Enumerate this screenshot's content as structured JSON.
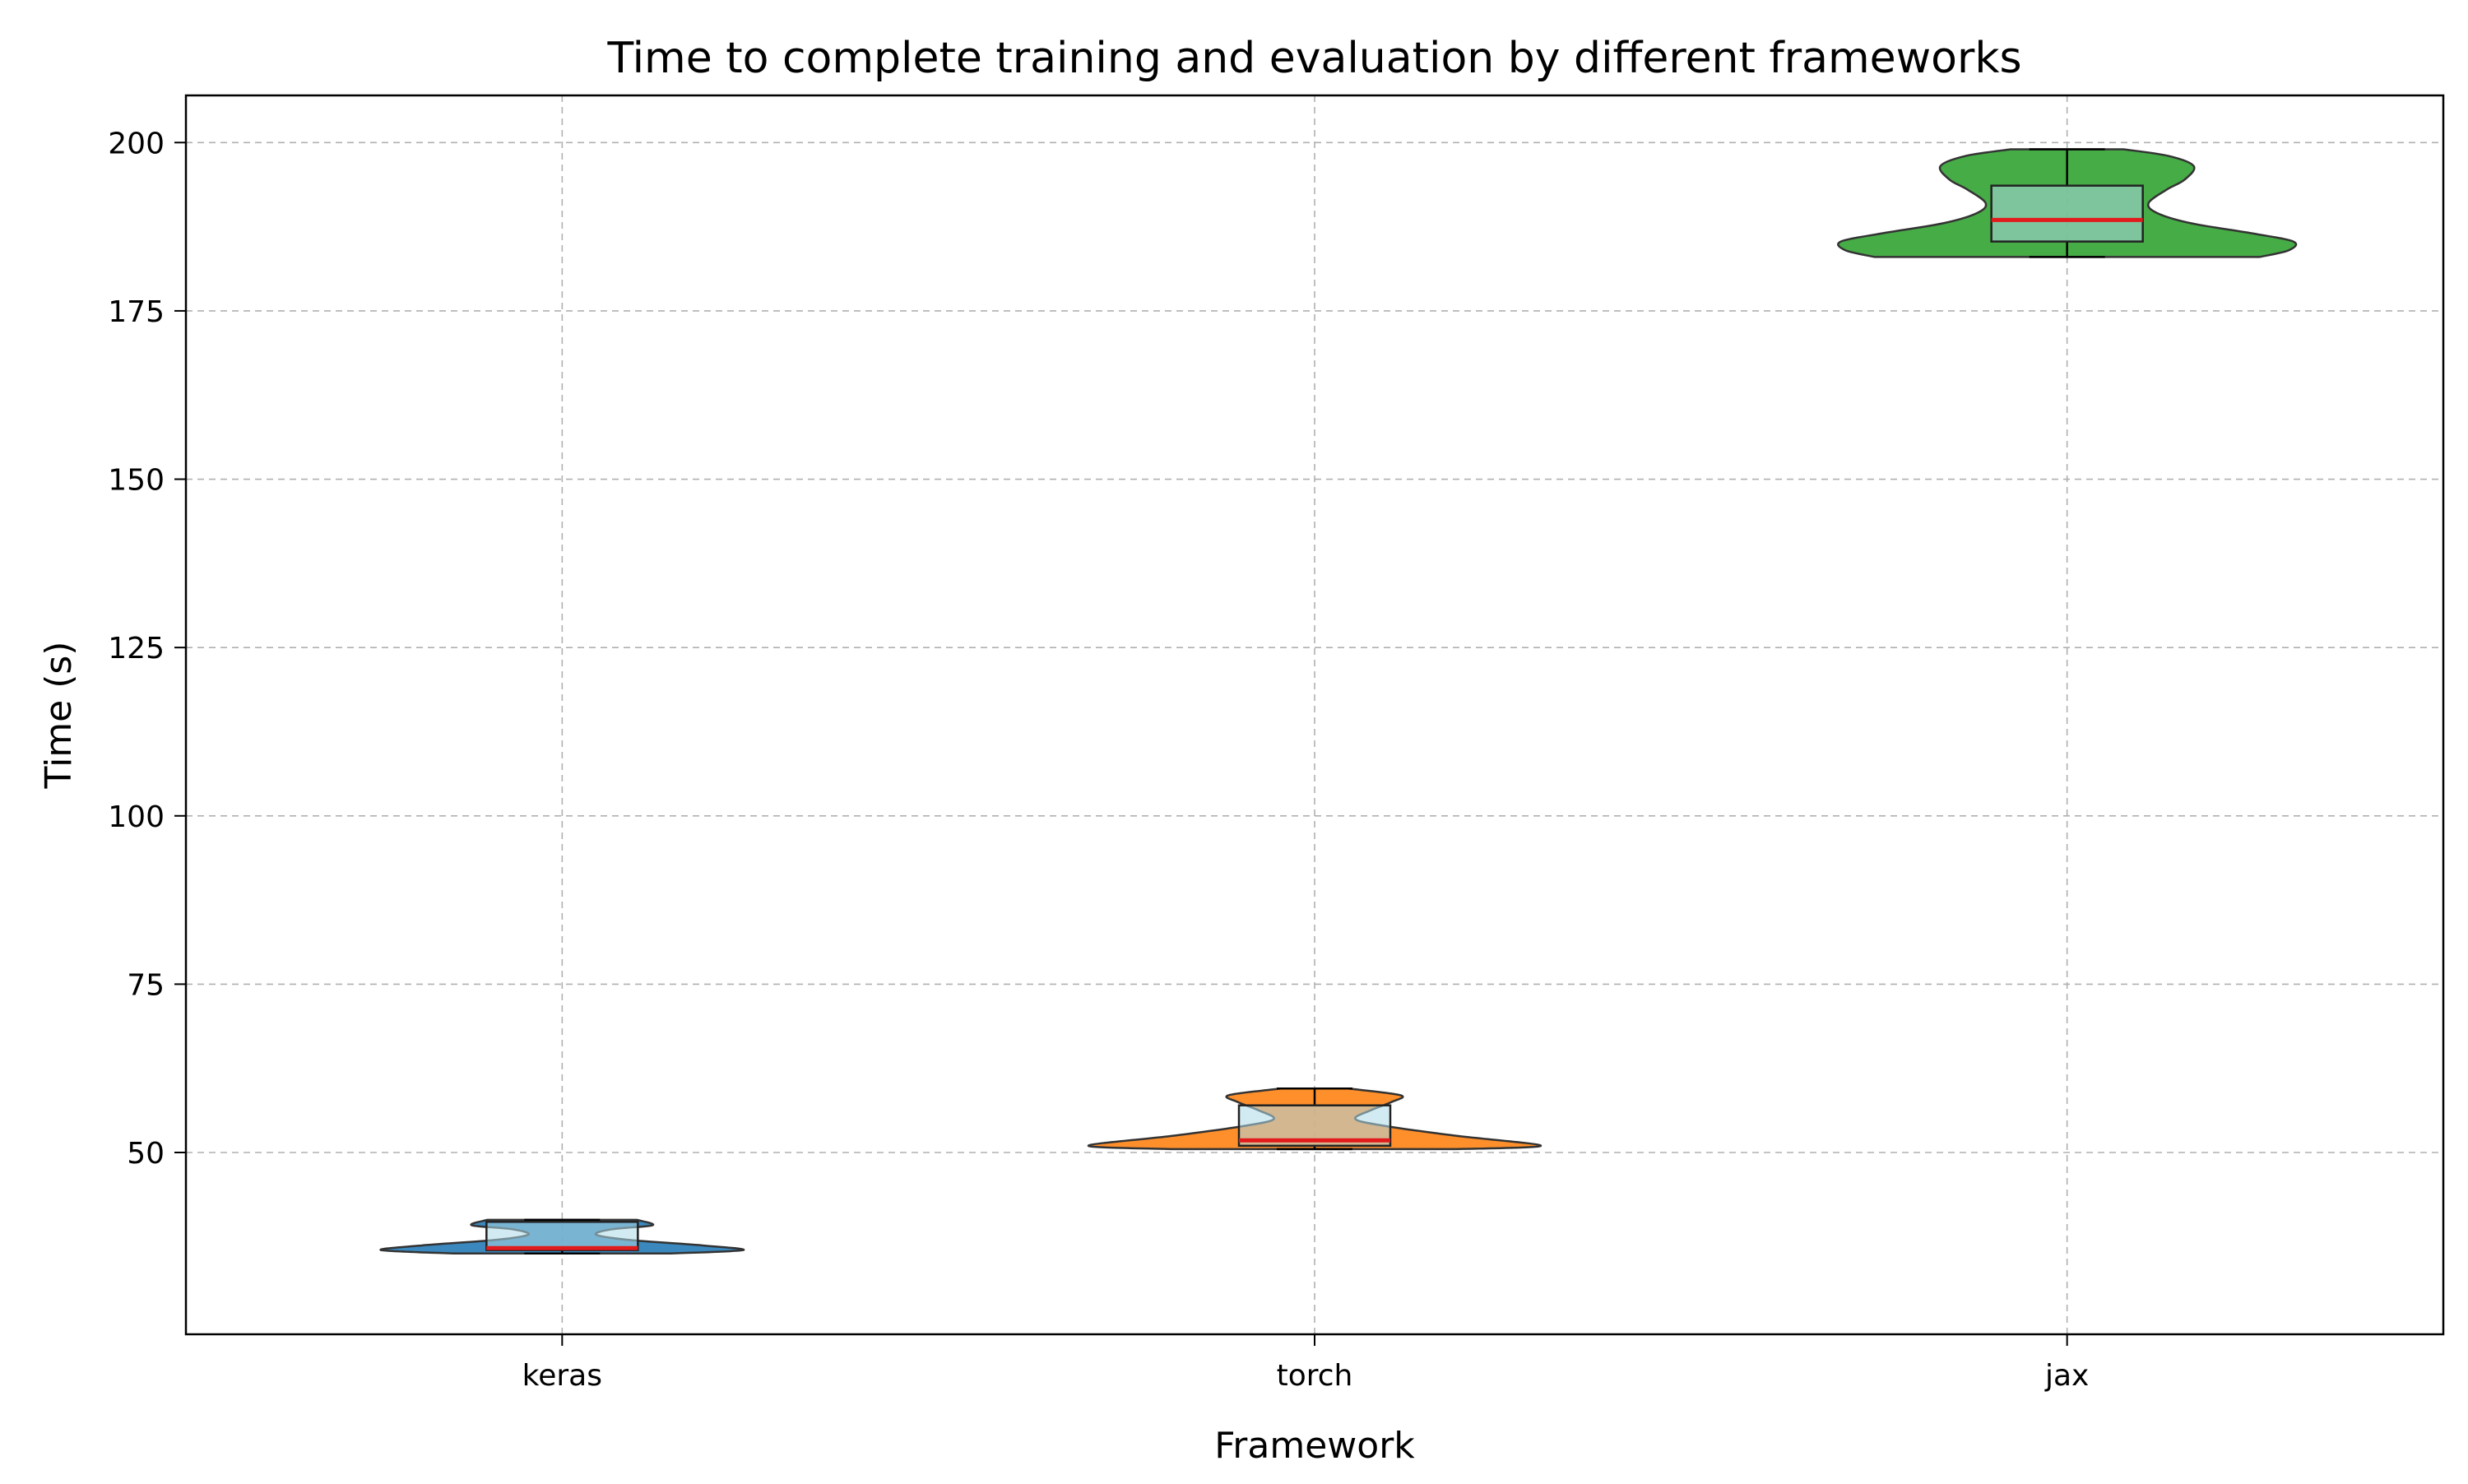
{
  "chart_data": {
    "type": "violin",
    "title": "Time to complete training and evaluation by different frameworks",
    "xlabel": "Framework",
    "ylabel": "Time (s)",
    "categories": [
      "keras",
      "torch",
      "jax"
    ],
    "ylim": [
      23,
      207
    ],
    "yticks": [
      50,
      75,
      100,
      125,
      150,
      175,
      200
    ],
    "grid": true,
    "series": [
      {
        "category": "keras",
        "color": "#1f77b4",
        "min": 35.0,
        "q1": 35.5,
        "median": 35.8,
        "q3": 39.7,
        "max": 40.0,
        "density_profile": [
          [
            35.0,
            0.48
          ],
          [
            35.5,
            0.8
          ],
          [
            36.2,
            0.62
          ],
          [
            37.0,
            0.3
          ],
          [
            37.8,
            0.15
          ],
          [
            38.6,
            0.22
          ],
          [
            39.2,
            0.4
          ],
          [
            40.0,
            0.33
          ]
        ]
      },
      {
        "category": "torch",
        "color": "#ff7f0e",
        "min": 50.5,
        "q1": 51.0,
        "median": 51.8,
        "q3": 57.0,
        "max": 59.5,
        "density_profile": [
          [
            50.5,
            0.62
          ],
          [
            51.0,
            1.0
          ],
          [
            52.5,
            0.62
          ],
          [
            54.0,
            0.3
          ],
          [
            55.0,
            0.18
          ],
          [
            56.3,
            0.25
          ],
          [
            57.5,
            0.34
          ],
          [
            58.5,
            0.38
          ],
          [
            59.5,
            0.15
          ]
        ]
      },
      {
        "category": "jax",
        "color": "#2ca02c",
        "min": 183.0,
        "q1": 185.3,
        "median": 188.5,
        "q3": 193.6,
        "max": 199.0,
        "density_profile": [
          [
            183.0,
            0.85
          ],
          [
            184.0,
            0.98
          ],
          [
            185.3,
            1.0
          ],
          [
            186.5,
            0.82
          ],
          [
            188.0,
            0.55
          ],
          [
            189.5,
            0.4
          ],
          [
            191.0,
            0.36
          ],
          [
            193.0,
            0.44
          ],
          [
            194.5,
            0.52
          ],
          [
            196.5,
            0.56
          ],
          [
            198.0,
            0.45
          ],
          [
            199.0,
            0.25
          ]
        ]
      }
    ]
  }
}
